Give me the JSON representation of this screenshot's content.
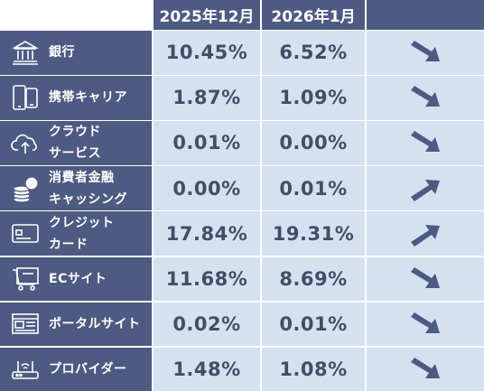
{
  "headers": [
    "2025年12月",
    "2026年1月"
  ],
  "rows": [
    {
      "label_lines": [
        "銀行"
      ],
      "icon": "bank-icon",
      "v1": "10.45%",
      "v2": "6.52%",
      "trend": "down"
    },
    {
      "label_lines": [
        "携帯キャリア"
      ],
      "icon": "smartphone-icon",
      "v1": "1.87%",
      "v2": "1.09%",
      "trend": "down"
    },
    {
      "label_lines": [
        "クラウド",
        "サービス"
      ],
      "icon": "cloud-upload-icon",
      "v1": "0.01%",
      "v2": "0.00%",
      "trend": "down"
    },
    {
      "label_lines": [
        "消費者金融",
        "キャッシング"
      ],
      "icon": "coins-icon",
      "v1": "0.00%",
      "v2": "0.01%",
      "trend": "up"
    },
    {
      "label_lines": [
        "クレジット",
        "カード"
      ],
      "icon": "credit-card-icon",
      "v1": "17.84%",
      "v2": "19.31%",
      "trend": "up"
    },
    {
      "label_lines": [
        "ECサイト"
      ],
      "icon": "shopping-cart-icon",
      "v1": "11.68%",
      "v2": "8.69%",
      "trend": "down"
    },
    {
      "label_lines": [
        "ポータルサイト"
      ],
      "icon": "browser-window-icon",
      "v1": "0.02%",
      "v2": "0.01%",
      "trend": "down"
    },
    {
      "label_lines": [
        "プロバイダー"
      ],
      "icon": "router-icon",
      "v1": "1.48%",
      "v2": "1.08%",
      "trend": "down"
    }
  ],
  "colors": {
    "header_bg": "#4d5b82",
    "cell_bg": "#d5e1f1",
    "value_text": "#454d66",
    "arrow": "#4d5b82"
  }
}
